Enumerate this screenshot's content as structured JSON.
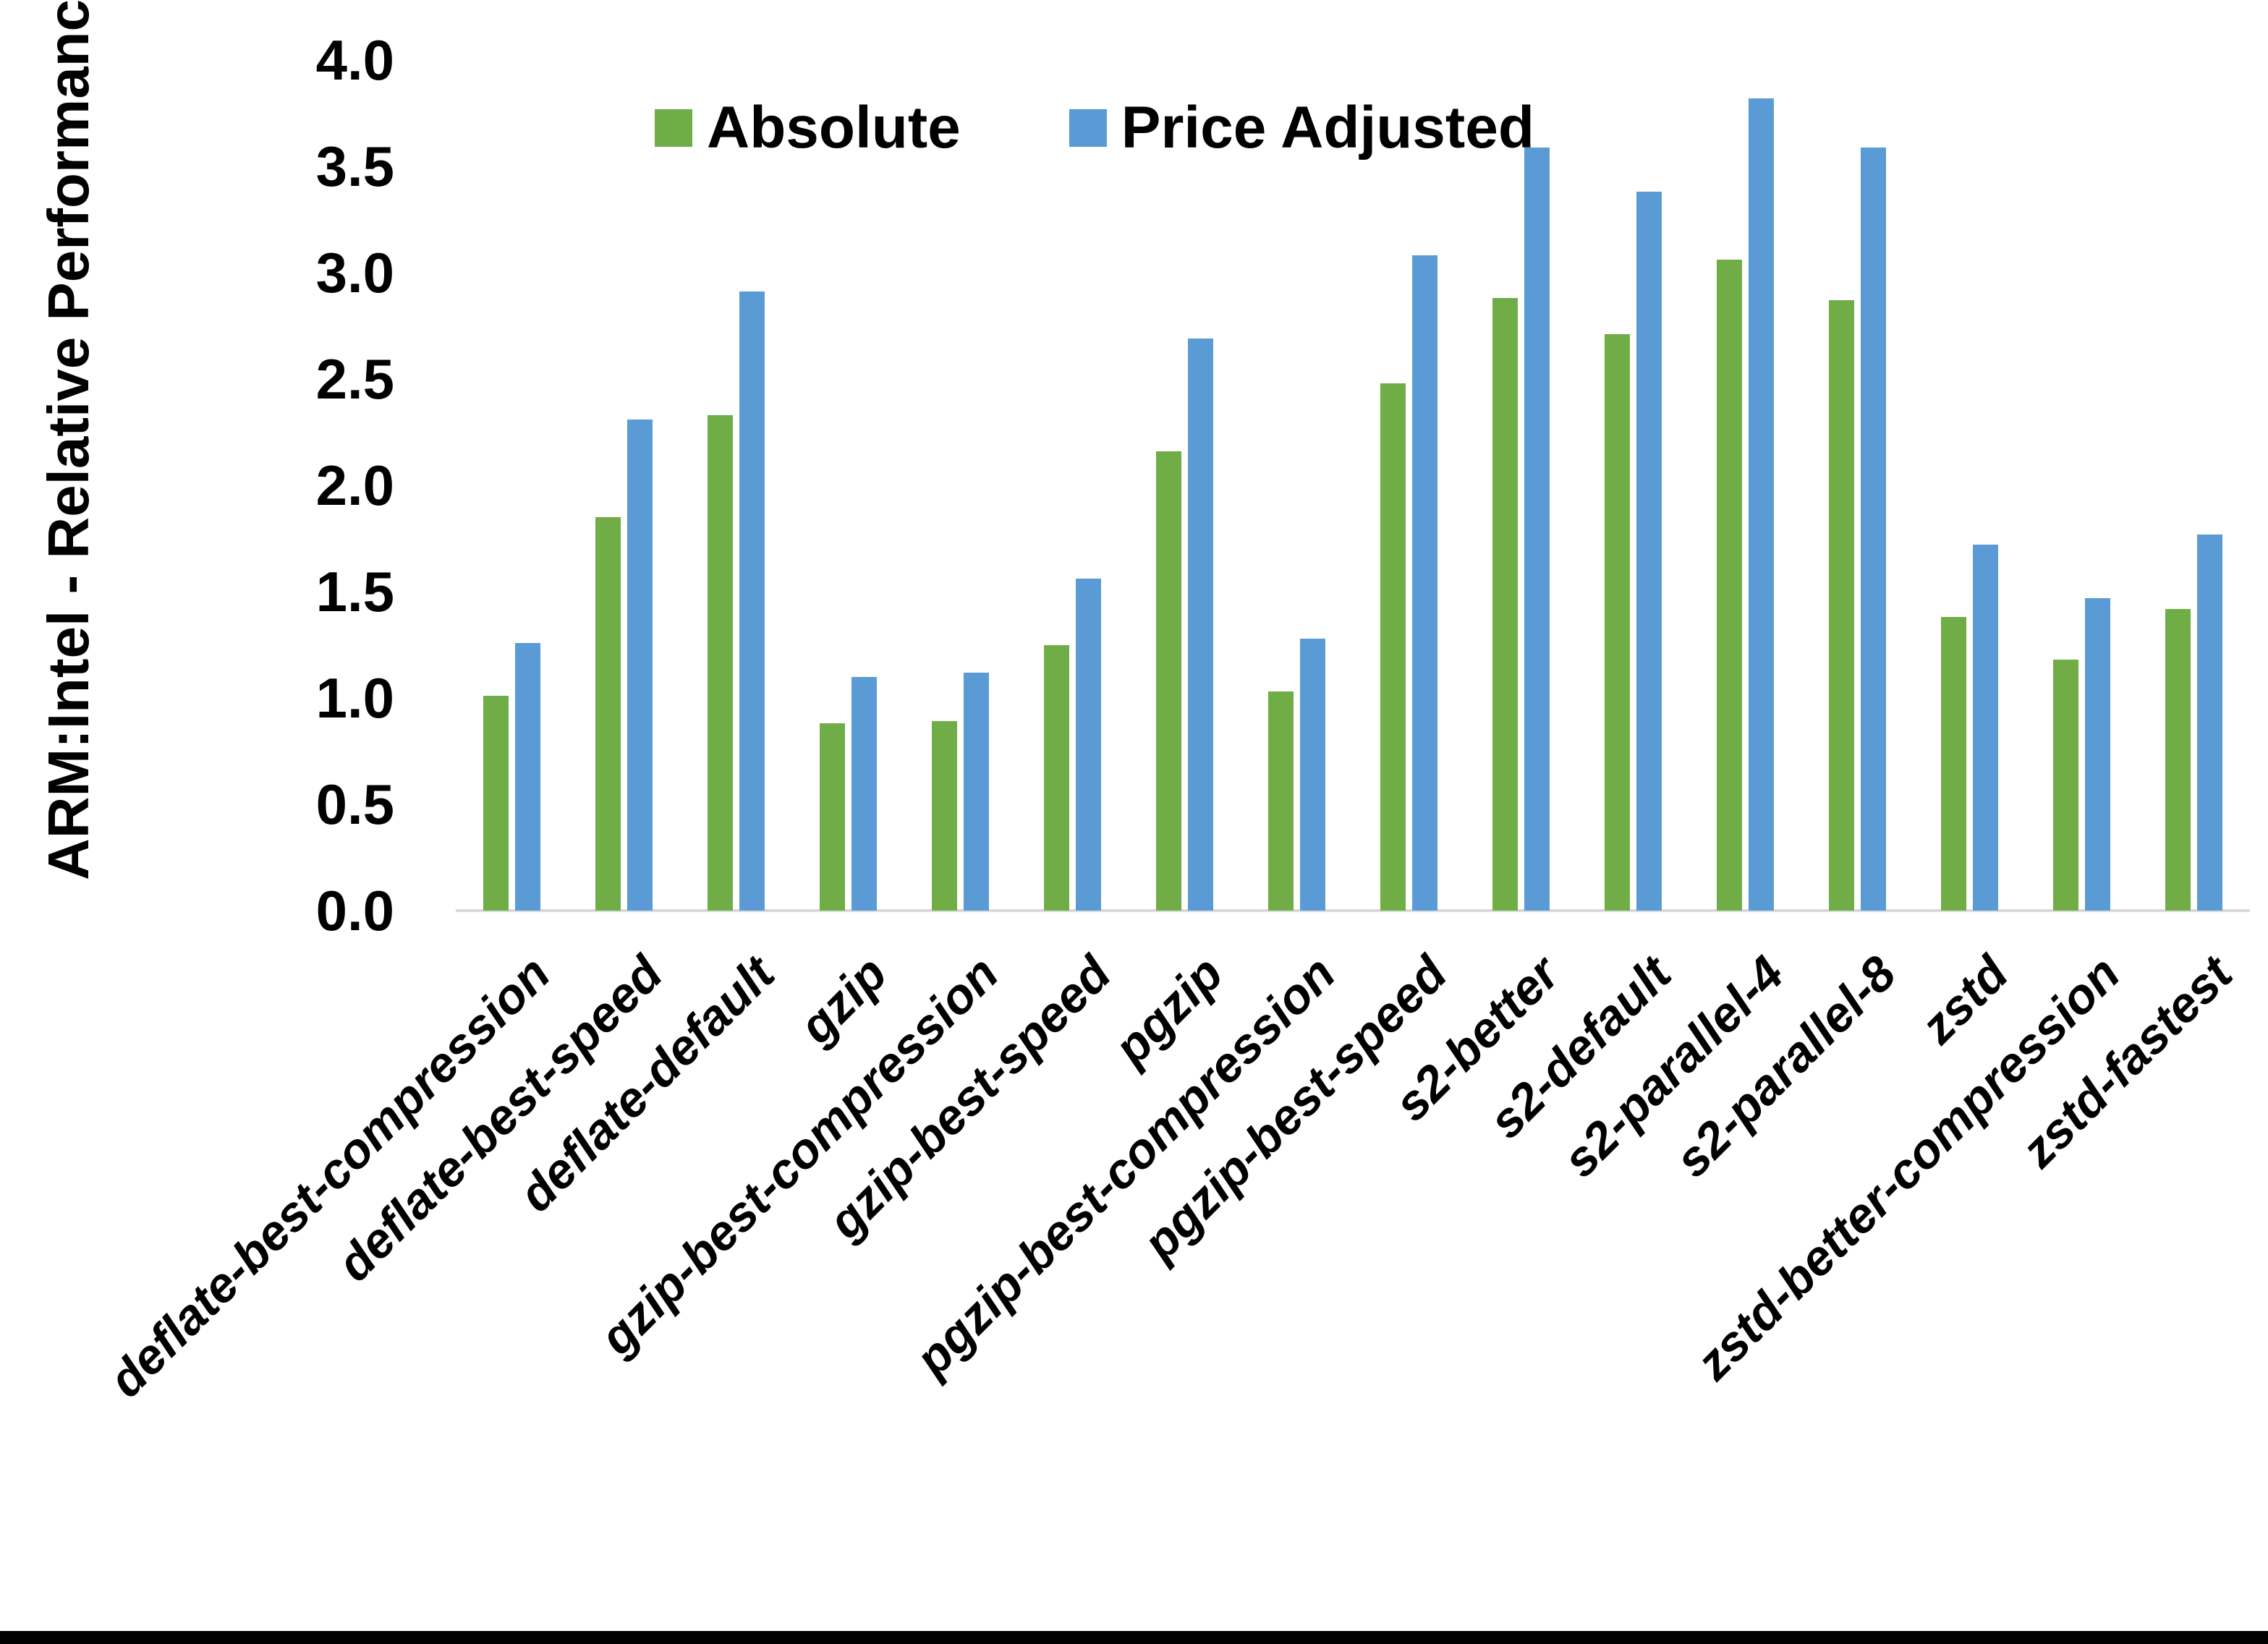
{
  "chart_data": {
    "type": "bar",
    "title": "",
    "xlabel": "",
    "ylabel": "ARM:Intel - Relative Performance",
    "ylim": [
      0.0,
      4.0
    ],
    "ytick_step": 0.5,
    "ytick_labels": [
      "0.0",
      "0.5",
      "1.0",
      "1.5",
      "2.0",
      "2.5",
      "3.0",
      "3.5",
      "4.0"
    ],
    "grid": false,
    "legend_position": "top-center",
    "categories": [
      "deflate-best-compression",
      "deflate-best-speed",
      "deflate-default",
      "gzip",
      "gzip-best-compression",
      "gzip-best-speed",
      "pgzip",
      "pgzip-best-compression",
      "pgzip-best-speed",
      "s2-better",
      "s2-default",
      "s2-parallel-4",
      "s2-parallel-8",
      "zstd",
      "zstd-better-compression",
      "zstd-fastest"
    ],
    "series": [
      {
        "name": "Absolute",
        "color": "#70AD47",
        "values": [
          1.01,
          1.85,
          2.33,
          0.88,
          0.89,
          1.25,
          2.16,
          1.03,
          2.48,
          2.88,
          2.71,
          3.06,
          2.87,
          1.38,
          1.18,
          1.42
        ]
      },
      {
        "name": "Price Adjusted",
        "color": "#5B9BD5",
        "values": [
          1.26,
          2.31,
          2.91,
          1.1,
          1.12,
          1.56,
          2.69,
          1.28,
          3.08,
          3.59,
          3.38,
          3.82,
          3.59,
          1.72,
          1.47,
          1.77
        ]
      }
    ]
  },
  "colors": {
    "background": "#FFFFFF",
    "axis_line": "#D9D9D9",
    "text": "#000000",
    "bottom_bar": "#000000"
  }
}
